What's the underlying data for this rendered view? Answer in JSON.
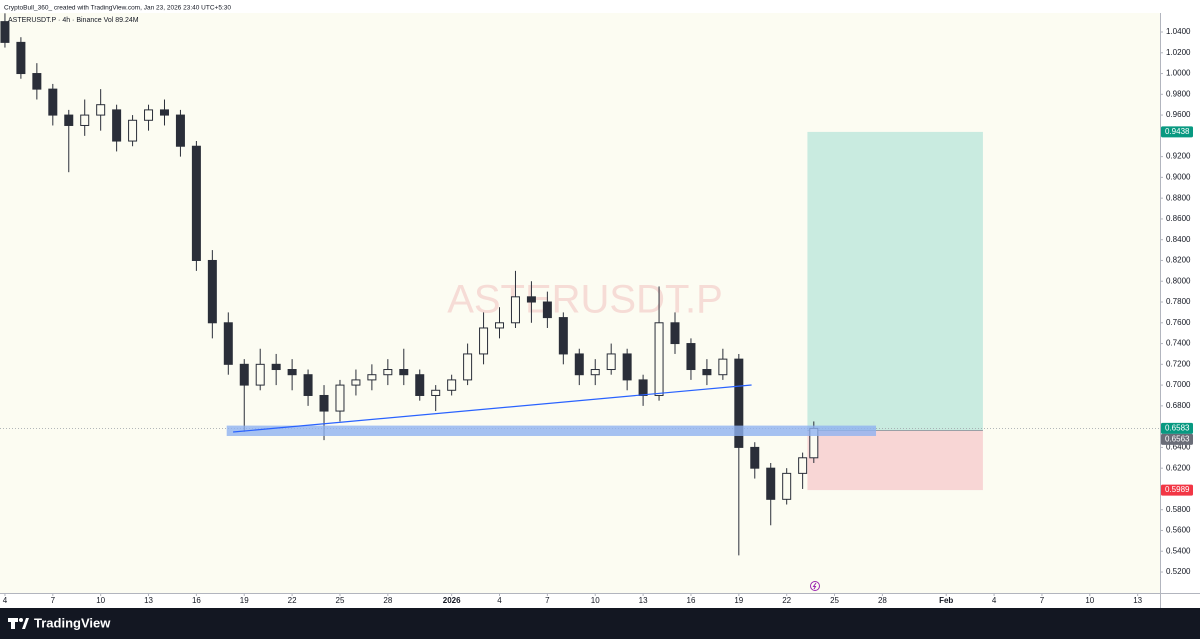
{
  "header": {
    "caption": "CryptoBull_360_ created with TradingView.com, Jan 23, 2026 23:40 UTC+5:30",
    "symbol_line": "ASTERUSDT.P · 4h · Binance  Vol 89.24M"
  },
  "footer": {
    "brand": "TradingView"
  },
  "chart_data": {
    "type": "candlestick",
    "watermark": "ASTERUSDT.P",
    "up_color": "#2a2e39",
    "down_color": "#2a2e39",
    "x": [
      0,
      1,
      2,
      3,
      4,
      5,
      6,
      7,
      8,
      9,
      10,
      11,
      12,
      13,
      14,
      15,
      16,
      17,
      18,
      19,
      20,
      21,
      22,
      23,
      24,
      25,
      26,
      27,
      28,
      29,
      30,
      31,
      32,
      33,
      34,
      35,
      36,
      37,
      38,
      39,
      40,
      41,
      42,
      43,
      44,
      45,
      46,
      47,
      48,
      49,
      50,
      50.7
    ],
    "open": [
      1.05,
      1.03,
      1.0,
      0.985,
      0.96,
      0.95,
      0.96,
      0.965,
      0.935,
      0.955,
      0.965,
      0.96,
      0.93,
      0.82,
      0.76,
      0.72,
      0.7,
      0.72,
      0.715,
      0.71,
      0.69,
      0.675,
      0.7,
      0.705,
      0.71,
      0.715,
      0.71,
      0.69,
      0.695,
      0.705,
      0.73,
      0.755,
      0.76,
      0.785,
      0.78,
      0.765,
      0.73,
      0.71,
      0.715,
      0.73,
      0.705,
      0.69,
      0.76,
      0.74,
      0.715,
      0.71,
      0.725,
      0.64,
      0.62,
      0.59,
      0.615,
      0.63
    ],
    "high": [
      1.058,
      1.035,
      1.01,
      0.99,
      0.965,
      0.975,
      0.985,
      0.97,
      0.96,
      0.97,
      0.975,
      0.965,
      0.935,
      0.83,
      0.77,
      0.725,
      0.735,
      0.73,
      0.725,
      0.715,
      0.7,
      0.705,
      0.715,
      0.72,
      0.725,
      0.735,
      0.715,
      0.7,
      0.71,
      0.74,
      0.77,
      0.775,
      0.81,
      0.8,
      0.79,
      0.77,
      0.735,
      0.725,
      0.74,
      0.735,
      0.71,
      0.795,
      0.77,
      0.745,
      0.725,
      0.735,
      0.73,
      0.645,
      0.625,
      0.62,
      0.635,
      0.665
    ],
    "low": [
      1.025,
      0.995,
      0.975,
      0.95,
      0.905,
      0.94,
      0.945,
      0.925,
      0.93,
      0.945,
      0.95,
      0.92,
      0.81,
      0.745,
      0.71,
      0.655,
      0.695,
      0.7,
      0.695,
      0.68,
      0.647,
      0.665,
      0.69,
      0.695,
      0.7,
      0.7,
      0.685,
      0.675,
      0.69,
      0.7,
      0.72,
      0.745,
      0.755,
      0.76,
      0.755,
      0.72,
      0.7,
      0.7,
      0.71,
      0.695,
      0.68,
      0.685,
      0.73,
      0.705,
      0.7,
      0.705,
      0.536,
      0.61,
      0.565,
      0.585,
      0.6,
      0.625
    ],
    "close": [
      1.03,
      1.0,
      0.985,
      0.96,
      0.95,
      0.96,
      0.97,
      0.935,
      0.955,
      0.965,
      0.96,
      0.93,
      0.82,
      0.76,
      0.72,
      0.7,
      0.72,
      0.715,
      0.71,
      0.69,
      0.675,
      0.7,
      0.705,
      0.71,
      0.715,
      0.71,
      0.69,
      0.695,
      0.705,
      0.73,
      0.755,
      0.76,
      0.785,
      0.78,
      0.765,
      0.73,
      0.71,
      0.715,
      0.73,
      0.705,
      0.69,
      0.76,
      0.74,
      0.715,
      0.71,
      0.725,
      0.64,
      0.62,
      0.59,
      0.615,
      0.63,
      0.6583
    ],
    "xlim": [
      -0.31,
      72.4
    ],
    "xticks": [
      {
        "value": 0,
        "label": "4"
      },
      {
        "value": 3,
        "label": "7"
      },
      {
        "value": 6,
        "label": "10"
      },
      {
        "value": 9,
        "label": "13"
      },
      {
        "value": 12,
        "label": "16"
      },
      {
        "value": 15,
        "label": "19"
      },
      {
        "value": 18,
        "label": "22"
      },
      {
        "value": 21,
        "label": "25"
      },
      {
        "value": 24,
        "label": "28"
      },
      {
        "value": 28,
        "label": "2026"
      },
      {
        "value": 31,
        "label": "4"
      },
      {
        "value": 34,
        "label": "7"
      },
      {
        "value": 37,
        "label": "10"
      },
      {
        "value": 40,
        "label": "13"
      },
      {
        "value": 43,
        "label": "16"
      },
      {
        "value": 46,
        "label": "19"
      },
      {
        "value": 49,
        "label": "22"
      },
      {
        "value": 52,
        "label": "25"
      },
      {
        "value": 55,
        "label": "28"
      },
      {
        "value": 59,
        "label": "Feb"
      },
      {
        "value": 62,
        "label": "4"
      },
      {
        "value": 65,
        "label": "7"
      },
      {
        "value": 68,
        "label": "10"
      },
      {
        "value": 71,
        "label": "13"
      }
    ],
    "ylim": [
      0.4998,
      1.0583
    ],
    "yticks": [
      {
        "value": 0.52,
        "label": "0.5200"
      },
      {
        "value": 0.54,
        "label": "0.5400"
      },
      {
        "value": 0.56,
        "label": "0.5600"
      },
      {
        "value": 0.58,
        "label": "0.5800"
      },
      {
        "value": 0.6,
        "label": "0.6000"
      },
      {
        "value": 0.62,
        "label": "0.6200"
      },
      {
        "value": 0.64,
        "label": "0.6400"
      },
      {
        "value": 0.68,
        "label": "0.6800"
      },
      {
        "value": 0.7,
        "label": "0.7000"
      },
      {
        "value": 0.72,
        "label": "0.7200"
      },
      {
        "value": 0.74,
        "label": "0.7400"
      },
      {
        "value": 0.76,
        "label": "0.7600"
      },
      {
        "value": 0.78,
        "label": "0.7800"
      },
      {
        "value": 0.8,
        "label": "0.8000"
      },
      {
        "value": 0.82,
        "label": "0.8200"
      },
      {
        "value": 0.84,
        "label": "0.8400"
      },
      {
        "value": 0.86,
        "label": "0.8600"
      },
      {
        "value": 0.88,
        "label": "0.8800"
      },
      {
        "value": 0.9,
        "label": "0.9000"
      },
      {
        "value": 0.92,
        "label": "0.9200"
      },
      {
        "value": 0.96,
        "label": "0.9600"
      },
      {
        "value": 0.98,
        "label": "0.9800"
      },
      {
        "value": 1.0,
        "label": "1.0000"
      },
      {
        "value": 1.02,
        "label": "1.0200"
      },
      {
        "value": 1.04,
        "label": "1.0400"
      }
    ],
    "current_price": 0.6583,
    "price_labels": [
      {
        "value": 0.9438,
        "color": "#089981"
      },
      {
        "value": 0.6583,
        "color": "#089981"
      },
      {
        "value": 0.6563,
        "color": "#6a6d78"
      },
      {
        "value": 0.5989,
        "color": "#f23645"
      }
    ],
    "zone": {
      "x_start": 13.9,
      "x_end": 54.6,
      "top": 0.661,
      "bottom": 0.651,
      "color": "#8fb2f0"
    },
    "trendline": {
      "x": [
        14.3,
        46.8
      ],
      "y": [
        0.6548,
        0.7001
      ],
      "color": "#2962ff"
    },
    "position": {
      "x_start": 50.3,
      "x_end": 61.3,
      "target": 0.9438,
      "entry": 0.6563,
      "stop": 0.5989,
      "profit_color": "#bfe7dd",
      "loss_color": "#f7cfd0"
    }
  }
}
